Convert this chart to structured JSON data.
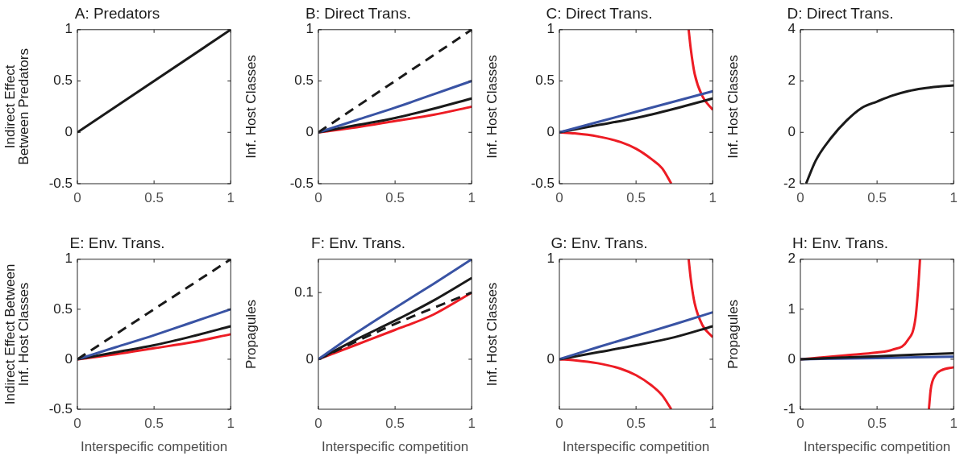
{
  "chart_data": [
    {
      "type": "line",
      "title": "A: Predators",
      "ylabel": "Indirect Effect Between Predators",
      "xlim": [
        0,
        1
      ],
      "xticks": [
        0,
        0.5,
        1
      ],
      "ylim": [
        -0.5,
        1
      ],
      "yticks": [
        -0.5,
        0,
        0.5,
        1
      ],
      "grid": false,
      "legend": false,
      "marker": "none",
      "series": [
        {
          "color": "#1a1a1a",
          "x": [
            0,
            1
          ],
          "values": [
            0,
            1
          ]
        }
      ]
    },
    {
      "type": "line",
      "title": "B: Direct Trans.",
      "ylabel": "Inf. Host Classes",
      "xlim": [
        0,
        1
      ],
      "xticks": [
        0,
        0.5,
        1
      ],
      "ylim": [
        -0.5,
        1
      ],
      "yticks": [
        -0.5,
        0,
        0.5,
        1
      ],
      "grid": false,
      "legend": false,
      "marker": "none",
      "series": [
        {
          "color": "#1a1a1a",
          "line_style": "dashed",
          "x": [
            0,
            1
          ],
          "values": [
            0,
            1
          ]
        },
        {
          "color": "#3953a4",
          "x": [
            0,
            0.25,
            0.5,
            0.75,
            1
          ],
          "values": [
            0,
            0.12,
            0.24,
            0.37,
            0.5
          ]
        },
        {
          "color": "#1a1a1a",
          "x": [
            0,
            0.25,
            0.5,
            0.75,
            1
          ],
          "values": [
            0,
            0.07,
            0.14,
            0.23,
            0.33
          ]
        },
        {
          "color": "#ed1c24",
          "x": [
            0,
            0.25,
            0.5,
            0.75,
            1
          ],
          "values": [
            0,
            0.05,
            0.11,
            0.17,
            0.25
          ]
        }
      ]
    },
    {
      "type": "line",
      "title": "C: Direct Trans.",
      "ylabel": "Inf. Host Classes",
      "xlim": [
        0,
        1
      ],
      "xticks": [
        0,
        0.5,
        1
      ],
      "ylim": [
        -0.5,
        1
      ],
      "yticks": [
        -0.5,
        0,
        0.5,
        1
      ],
      "grid": false,
      "legend": false,
      "marker": "none",
      "series": [
        {
          "color": "#3953a4",
          "x": [
            0,
            0.25,
            0.5,
            0.75,
            1
          ],
          "values": [
            0,
            0.1,
            0.2,
            0.3,
            0.4
          ]
        },
        {
          "color": "#1a1a1a",
          "x": [
            0,
            0.25,
            0.5,
            0.75,
            1
          ],
          "values": [
            0,
            0.07,
            0.14,
            0.23,
            0.33
          ]
        },
        {
          "color": "#ed1c24",
          "x": [
            0,
            0.1,
            0.25,
            0.4,
            0.5,
            0.6,
            0.67,
            0.73,
            0.8,
            0.843,
            0.857,
            0.882,
            0.933,
            1
          ],
          "values": [
            0,
            -0.01,
            -0.04,
            -0.095,
            -0.16,
            -0.26,
            -0.35,
            -0.5,
            null,
            1,
            0.81,
            0.57,
            0.35,
            0.22
          ]
        }
      ]
    },
    {
      "type": "line",
      "title": "D: Direct Trans.",
      "ylabel": "Inf. Host Classes",
      "xlim": [
        0,
        1
      ],
      "xticks": [
        0,
        0.5,
        1
      ],
      "ylim": [
        -2,
        4
      ],
      "yticks": [
        -2,
        0,
        2,
        4
      ],
      "grid": false,
      "legend": false,
      "marker": "none",
      "series": [
        {
          "color": "#1a1a1a",
          "x": [
            0.037,
            0.1,
            0.2,
            0.3,
            0.4,
            0.5,
            0.6,
            0.7,
            0.8,
            0.9,
            1
          ],
          "values": [
            -2,
            -1.1,
            -0.22,
            0.45,
            0.95,
            1.2,
            1.43,
            1.6,
            1.71,
            1.78,
            1.83
          ]
        }
      ]
    },
    {
      "type": "line",
      "title": "E: Env. Trans.",
      "xlabel": "Interspecific competition",
      "ylabel": "Indirect Effect Between Inf. Host Classes",
      "xlim": [
        0,
        1
      ],
      "xticks": [
        0,
        0.5,
        1
      ],
      "ylim": [
        -0.5,
        1
      ],
      "yticks": [
        -0.5,
        0,
        0.5,
        1
      ],
      "grid": false,
      "legend": false,
      "marker": "none",
      "series": [
        {
          "color": "#1a1a1a",
          "line_style": "dashed",
          "x": [
            0,
            1
          ],
          "values": [
            0,
            1
          ]
        },
        {
          "color": "#3953a4",
          "x": [
            0,
            0.25,
            0.5,
            0.75,
            1
          ],
          "values": [
            0,
            0.12,
            0.24,
            0.37,
            0.5
          ]
        },
        {
          "color": "#1a1a1a",
          "x": [
            0,
            0.25,
            0.5,
            0.75,
            1
          ],
          "values": [
            0,
            0.07,
            0.14,
            0.23,
            0.33
          ]
        },
        {
          "color": "#ed1c24",
          "x": [
            0,
            0.25,
            0.5,
            0.75,
            1
          ],
          "values": [
            0,
            0.05,
            0.11,
            0.17,
            0.25
          ]
        }
      ]
    },
    {
      "type": "line",
      "title": "F: Env. Trans.",
      "xlabel": "Interspecific competition",
      "ylabel": "Propagules",
      "xlim": [
        0,
        1
      ],
      "xticks": [
        0,
        0.5,
        1
      ],
      "ylim": [
        -0.075,
        0.15
      ],
      "yticks": [
        0,
        0.1
      ],
      "grid": false,
      "legend": false,
      "marker": "none",
      "series": [
        {
          "color": "#3953a4",
          "x": [
            0,
            0.25,
            0.5,
            0.75,
            1
          ],
          "values": [
            0,
            0.04,
            0.077,
            0.113,
            0.15
          ]
        },
        {
          "color": "#1a1a1a",
          "x": [
            0,
            0.25,
            0.5,
            0.75,
            1
          ],
          "values": [
            0,
            0.03,
            0.058,
            0.088,
            0.122
          ]
        },
        {
          "color": "#1a1a1a",
          "line_style": "dashed",
          "x": [
            0,
            0.25,
            0.5,
            0.75,
            1
          ],
          "values": [
            0,
            0.027,
            0.053,
            0.077,
            0.1
          ]
        },
        {
          "color": "#ed1c24",
          "x": [
            0,
            0.25,
            0.5,
            0.75,
            1
          ],
          "values": [
            0,
            0.022,
            0.044,
            0.067,
            0.1
          ]
        }
      ]
    },
    {
      "type": "line",
      "title": "G: Env. Trans.",
      "xlabel": "Interspecific competition",
      "ylabel": "Inf. Host Classes",
      "xlim": [
        0,
        1
      ],
      "xticks": [
        0,
        0.5,
        1
      ],
      "ylim": [
        -0.5,
        1
      ],
      "yticks": [
        0,
        1
      ],
      "grid": false,
      "legend": false,
      "marker": "none",
      "series": [
        {
          "color": "#3953a4",
          "x": [
            0,
            0.25,
            0.5,
            0.75,
            1
          ],
          "values": [
            0,
            0.12,
            0.235,
            0.35,
            0.47
          ]
        },
        {
          "color": "#1a1a1a",
          "x": [
            0,
            0.25,
            0.5,
            0.75,
            1
          ],
          "values": [
            0,
            0.07,
            0.14,
            0.22,
            0.33
          ]
        },
        {
          "color": "#ed1c24",
          "x": [
            0,
            0.1,
            0.25,
            0.4,
            0.5,
            0.6,
            0.67,
            0.73,
            0.8,
            0.843,
            0.857,
            0.882,
            0.933,
            1
          ],
          "values": [
            0,
            -0.01,
            -0.04,
            -0.095,
            -0.16,
            -0.26,
            -0.36,
            -0.5,
            null,
            1,
            0.8,
            0.56,
            0.34,
            0.22
          ]
        }
      ]
    },
    {
      "type": "line",
      "title": "H: Env. Trans.",
      "xlabel": "Interspecific competition",
      "ylabel": "Propagules",
      "xlim": [
        0,
        1
      ],
      "xticks": [
        0,
        0.5,
        1
      ],
      "ylim": [
        -1,
        2
      ],
      "yticks": [
        -1,
        0,
        1,
        2
      ],
      "grid": false,
      "legend": false,
      "marker": "none",
      "series": [
        {
          "color": "#1a1a1a",
          "x": [
            0,
            0.25,
            0.5,
            0.75,
            1
          ],
          "values": [
            0,
            0.03,
            0.06,
            0.09,
            0.12
          ]
        },
        {
          "color": "#3953a4",
          "x": [
            0,
            0.5,
            1
          ],
          "values": [
            0,
            0.025,
            0.05
          ]
        },
        {
          "color": "#ed1c24",
          "x": [
            0,
            0.3,
            0.5,
            0.6,
            0.7,
            0.75,
            0.77,
            0.78,
            0.81,
            0.838,
            0.85,
            0.88,
            0.92,
            1
          ],
          "values": [
            0,
            0.08,
            0.135,
            0.19,
            0.38,
            0.81,
            1.5,
            2,
            null,
            -1,
            -0.6,
            -0.32,
            -0.22,
            -0.16
          ]
        }
      ]
    }
  ]
}
